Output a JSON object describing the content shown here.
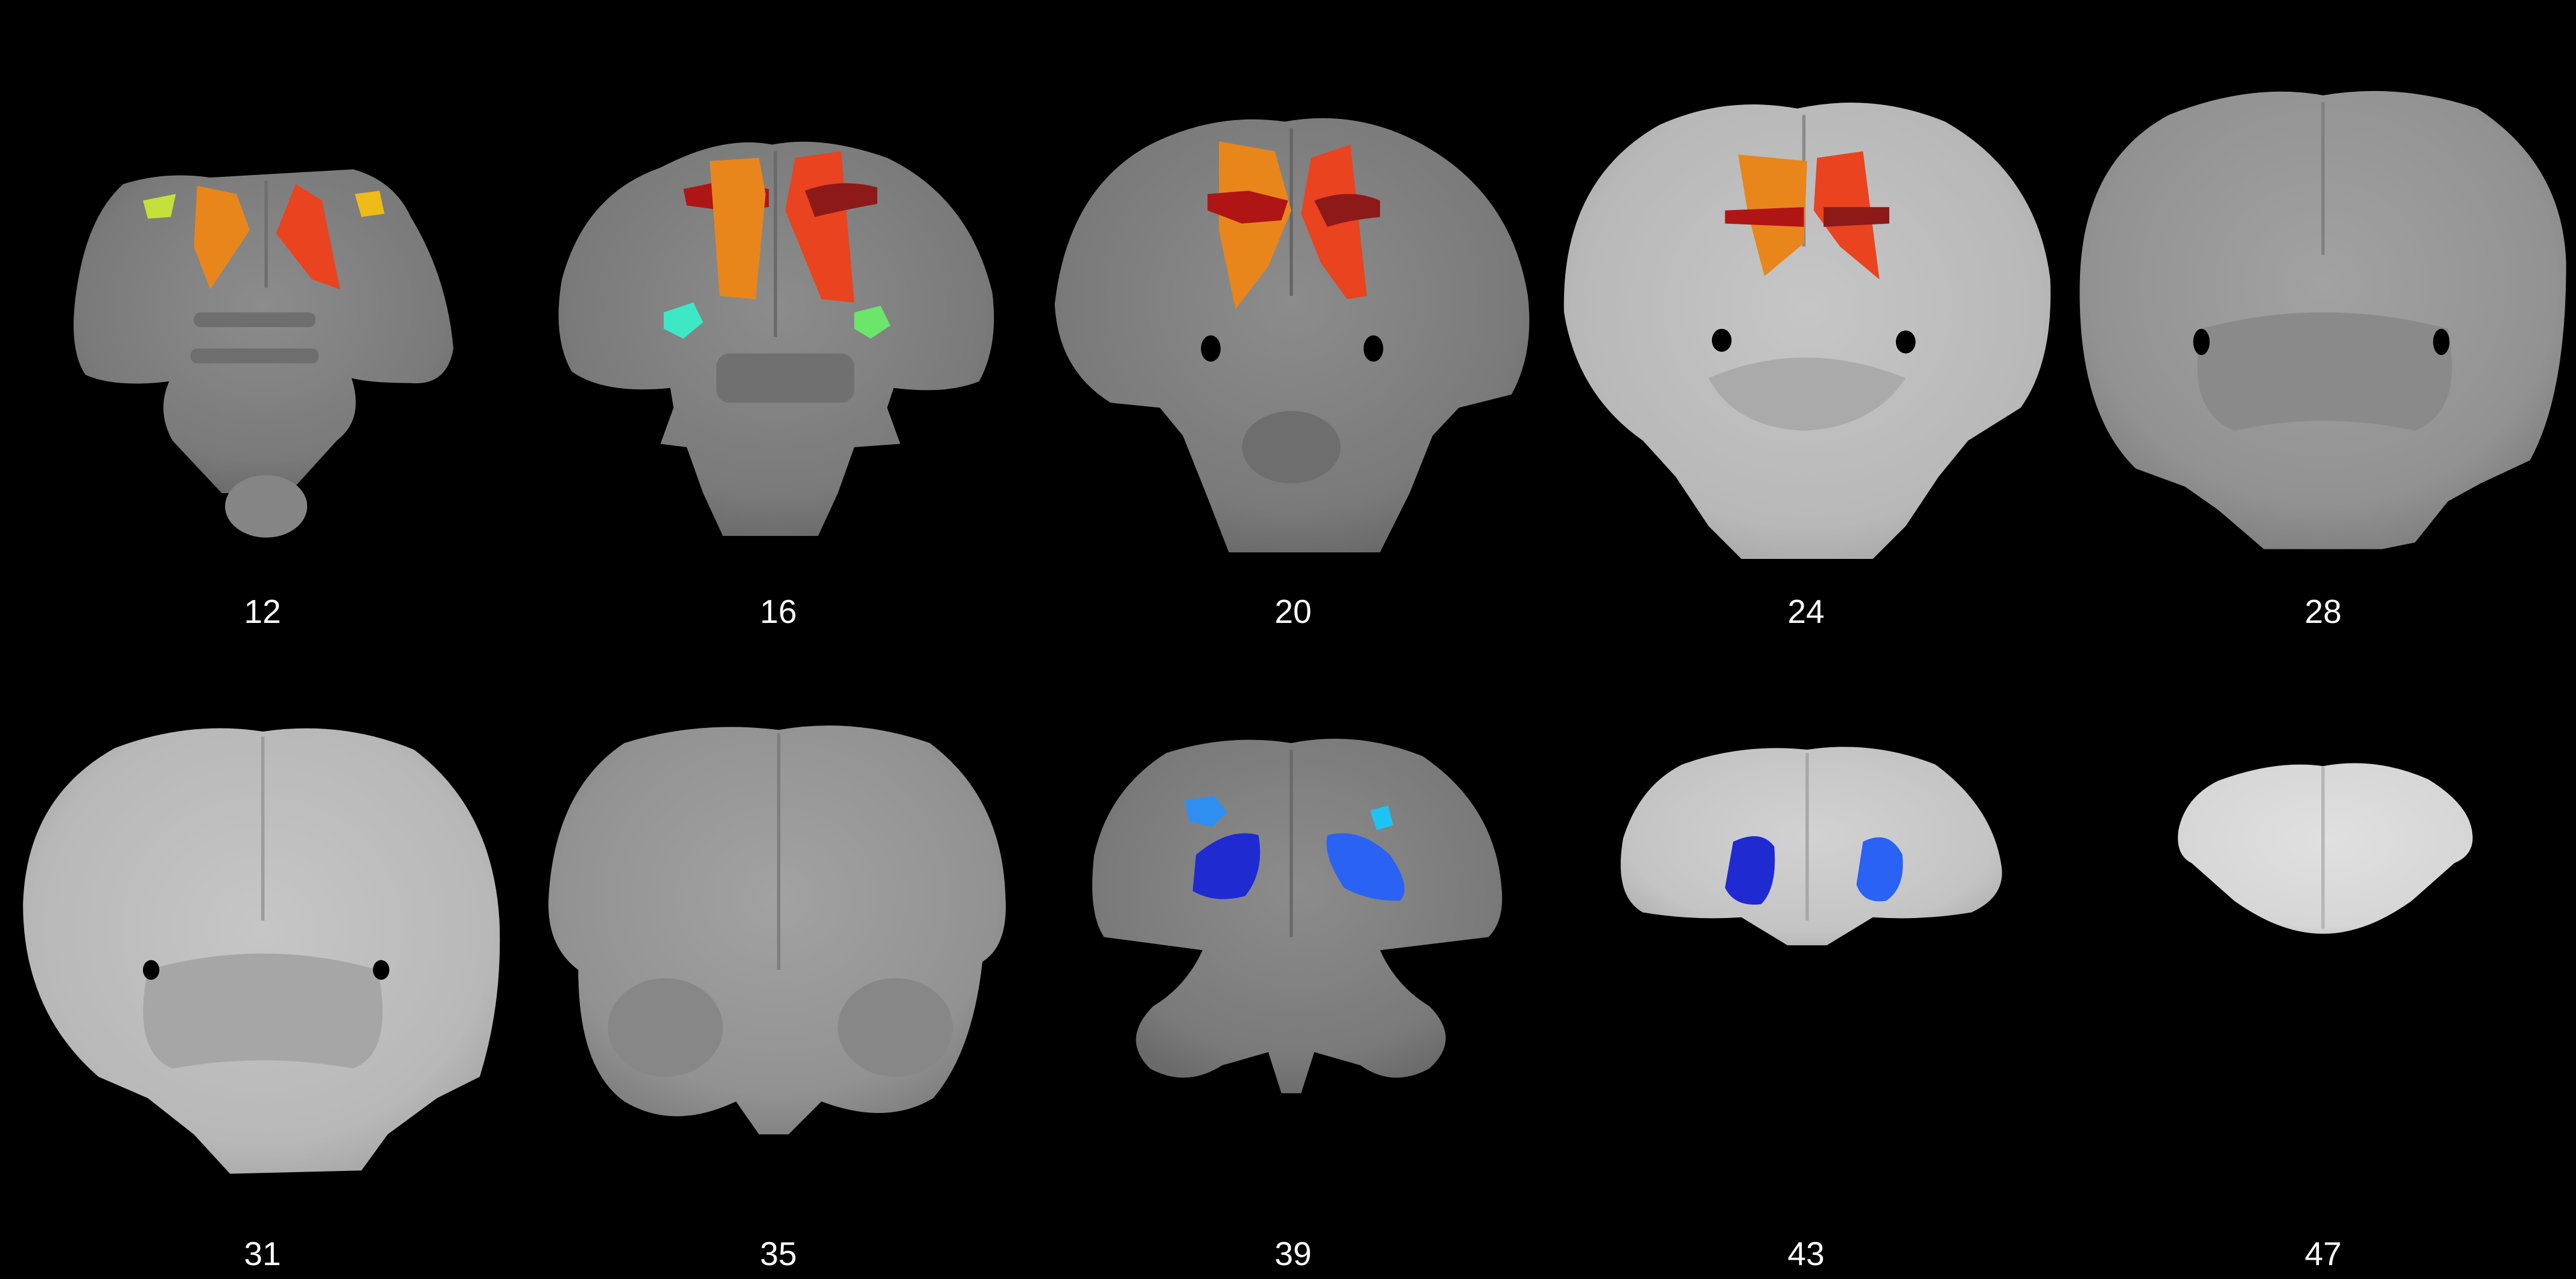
{
  "slices": [
    {
      "label": "12"
    },
    {
      "label": "16"
    },
    {
      "label": "20"
    },
    {
      "label": "24"
    },
    {
      "label": "28"
    },
    {
      "label": "31"
    },
    {
      "label": "35"
    },
    {
      "label": "39"
    },
    {
      "label": "43"
    },
    {
      "label": "47"
    }
  ],
  "colors": {
    "background": "#000000",
    "region_orange": "#e8861c",
    "region_red": "#e9431f",
    "region_dark_red": "#b01515",
    "region_maroon": "#8e1919",
    "region_yellow_green": "#c4e03a",
    "region_yellow": "#eebb18",
    "region_cyan": "#3ee8c6",
    "region_green": "#6be56a",
    "region_blue": "#2a62f4",
    "region_dark_blue": "#1f2ad1",
    "region_light_blue": "#2f8ff0",
    "region_sky_blue": "#1ec3f5"
  }
}
